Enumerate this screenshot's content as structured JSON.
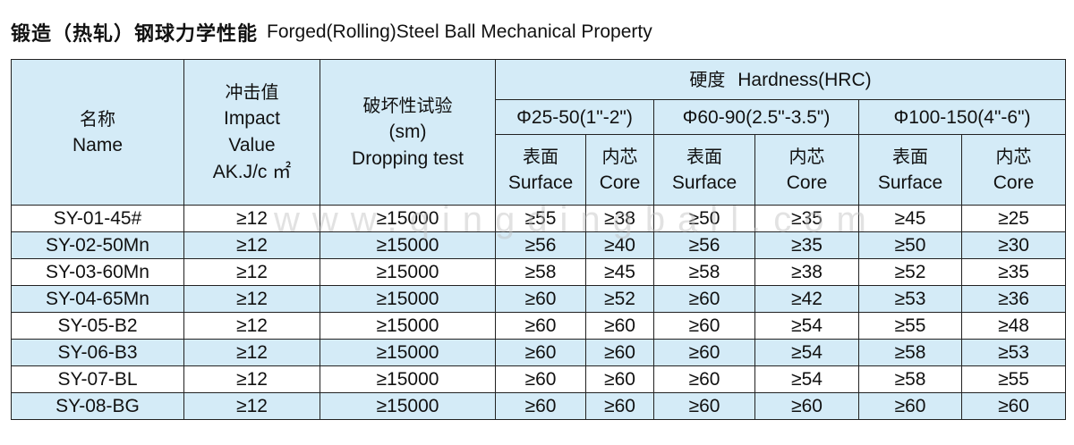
{
  "title": {
    "cn": "锻造（热轧）钢球力学性能",
    "en": "Forged(Rolling)Steel Ball Mechanical Property"
  },
  "headers": {
    "name": {
      "cn": "名称",
      "en": "Name"
    },
    "impact": {
      "cn": "冲击值",
      "en1": "Impact",
      "en2": "Value",
      "unit": "AK.J/c ㎡"
    },
    "drop": {
      "cn": "破坏性试验",
      "en1": "(sm)",
      "en2": "Dropping test"
    },
    "hardness": {
      "cn": "硬度",
      "en": "Hardness(HRC)"
    },
    "ranges": [
      "Φ25-50(1\"-2\")",
      "Φ60-90(2.5\"-3.5\")",
      "Φ100-150(4\"-6\")"
    ],
    "surface": {
      "cn": "表面",
      "en": "Surface"
    },
    "core": {
      "cn": "内芯",
      "en": "Core"
    }
  },
  "rows": [
    {
      "name": "SY-01-45#",
      "impact": "≥12",
      "drop": "≥15000",
      "h": [
        "≥55",
        "≥38",
        "≥50",
        "≥35",
        "≥45",
        "≥25"
      ]
    },
    {
      "name": "SY-02-50Mn",
      "impact": "≥12",
      "drop": "≥15000",
      "h": [
        "≥56",
        "≥40",
        "≥56",
        "≥35",
        "≥50",
        "≥30"
      ]
    },
    {
      "name": "SY-03-60Mn",
      "impact": "≥12",
      "drop": "≥15000",
      "h": [
        "≥58",
        "≥45",
        "≥58",
        "≥38",
        "≥52",
        "≥35"
      ]
    },
    {
      "name": "SY-04-65Mn",
      "impact": "≥12",
      "drop": "≥15000",
      "h": [
        "≥60",
        "≥52",
        "≥60",
        "≥42",
        "≥53",
        "≥36"
      ]
    },
    {
      "name": "SY-05-B2",
      "impact": "≥12",
      "drop": "≥15000",
      "h": [
        "≥60",
        "≥60",
        "≥60",
        "≥54",
        "≥55",
        "≥48"
      ]
    },
    {
      "name": "SY-06-B3",
      "impact": "≥12",
      "drop": "≥15000",
      "h": [
        "≥60",
        "≥60",
        "≥60",
        "≥54",
        "≥58",
        "≥53"
      ]
    },
    {
      "name": "SY-07-BL",
      "impact": "≥12",
      "drop": "≥15000",
      "h": [
        "≥60",
        "≥60",
        "≥60",
        "≥54",
        "≥58",
        "≥55"
      ]
    },
    {
      "name": "SY-08-BG",
      "impact": "≥12",
      "drop": "≥15000",
      "h": [
        "≥60",
        "≥60",
        "≥60",
        "≥60",
        "≥60",
        "≥60"
      ]
    }
  ],
  "watermark": "www.qingdingball.com",
  "colors": {
    "header_fill": "#d4ebf7",
    "band_fill": "#d4ebf7",
    "border": "#222222"
  }
}
